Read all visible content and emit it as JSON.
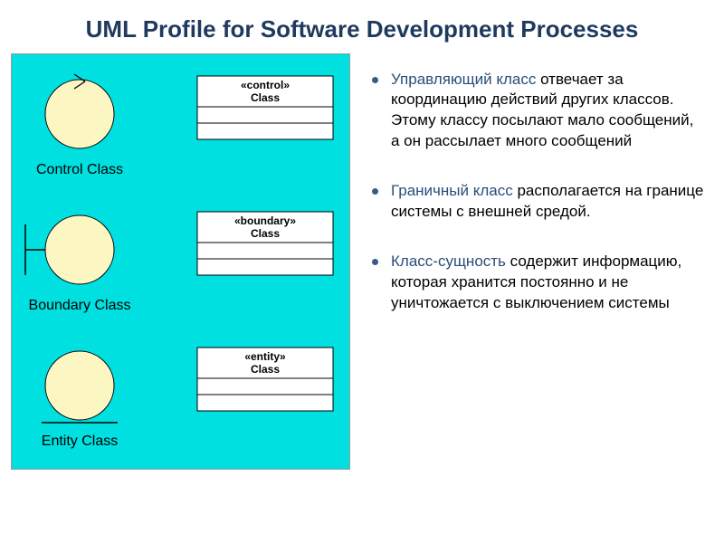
{
  "title": "UML Profile for Software Development Processes",
  "diagram": {
    "background_color": "#00e0e0",
    "circle_fill": "#fbf6c2",
    "stroke": "#000000",
    "box_fill": "#ffffff",
    "label_color": "#000000",
    "label_fontsize": 16,
    "box_text_fontsize": 12,
    "rows": [
      {
        "type": "control",
        "label": "Control Class",
        "stereotype": "«control»",
        "box_label": "Class"
      },
      {
        "type": "boundary",
        "label": "Boundary Class",
        "stereotype": "«boundary»",
        "box_label": "Class"
      },
      {
        "type": "entity",
        "label": "Entity Class",
        "stereotype": "«entity»",
        "box_label": "Class"
      }
    ]
  },
  "bullets": [
    {
      "term": "Управляющий класс",
      "rest": " отвечает за координацию действий других классов. Этому классу посылают мало сообщений, а он рассылает много сообщений"
    },
    {
      "term": "Граничный класс",
      "rest": " располагается на границе системы с внешней средой."
    },
    {
      "term": "Класс-сущность",
      "rest": " содержит информацию, которая хранится постоянно и не уничтожается с выключением системы"
    }
  ]
}
